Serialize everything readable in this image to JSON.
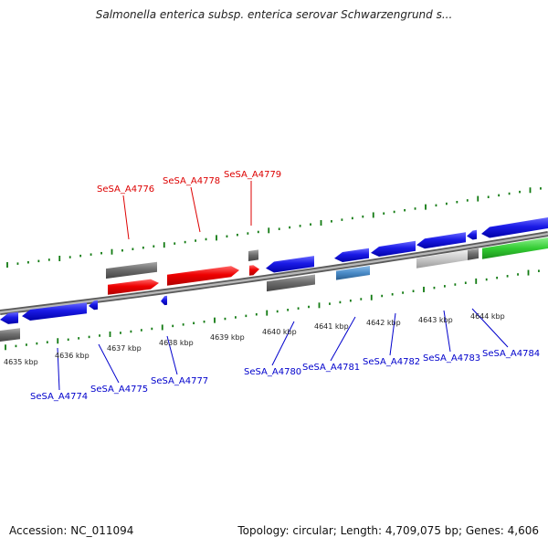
{
  "title": "Salmonella enterica subsp. enterica serovar Schwarzengrund s...",
  "accession_label": "Accession: NC_011094",
  "stats_label": "Topology: circular; Length: 4,709,075 bp; Genes: 4,606",
  "colors": {
    "label_red": "#dd0000",
    "label_blue": "#0000cc",
    "tick_green": "#117a11",
    "gene_red": "#ee0000",
    "gene_blue": "#1a1ae6",
    "gene_gray": "#6f6f6f",
    "gene_lightgray": "#c8c8c8",
    "gene_steel": "#4a8bc8",
    "gene_green": "#33cc33",
    "backbone": "#8a8a8a"
  },
  "scale_ticks": [
    {
      "label": "4635 kbp"
    },
    {
      "label": "4636 kbp"
    },
    {
      "label": "4637 kbp"
    },
    {
      "label": "4638 kbp"
    },
    {
      "label": "4639 kbp"
    },
    {
      "label": "4640 kbp"
    },
    {
      "label": "4641 kbp"
    },
    {
      "label": "4642 kbp"
    },
    {
      "label": "4643 kbp"
    },
    {
      "label": "4644 kbp"
    }
  ],
  "gene_labels": [
    {
      "name": "SeSA_A4776",
      "color": "red"
    },
    {
      "name": "SeSA_A4778",
      "color": "red"
    },
    {
      "name": "SeSA_A4779",
      "color": "red"
    },
    {
      "name": "SeSA_A4774",
      "color": "blue"
    },
    {
      "name": "SeSA_A4775",
      "color": "blue"
    },
    {
      "name": "SeSA_A4777",
      "color": "blue"
    },
    {
      "name": "SeSA_A4780",
      "color": "blue"
    },
    {
      "name": "SeSA_A4781",
      "color": "blue"
    },
    {
      "name": "SeSA_A4782",
      "color": "blue"
    },
    {
      "name": "SeSA_A4783",
      "color": "blue"
    },
    {
      "name": "SeSA_A4784",
      "color": "blue"
    }
  ]
}
